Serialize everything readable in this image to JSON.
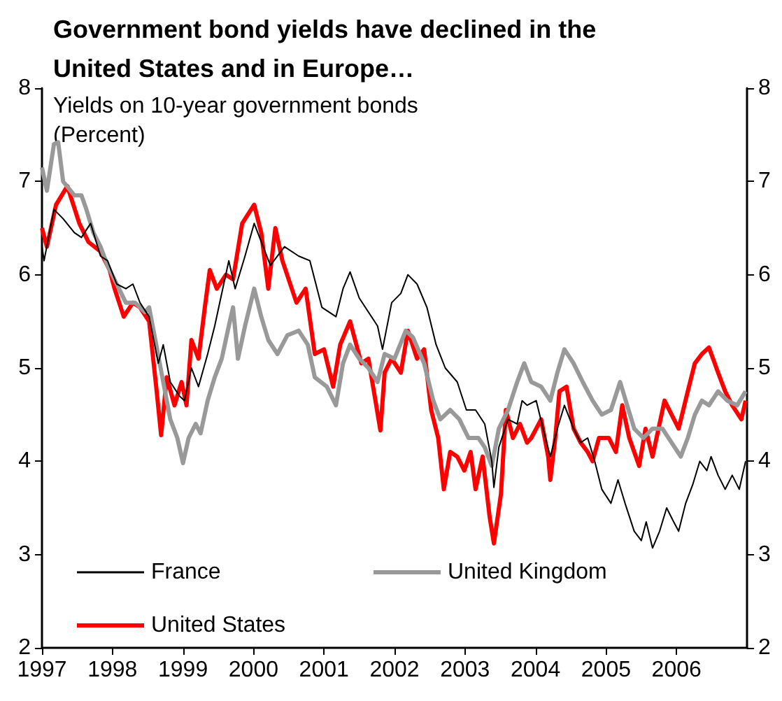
{
  "chart_data": {
    "type": "line",
    "title": "Government bond yields have declined in the United States and in Europe…",
    "annotations": [
      "Yields on 10-year government bonds",
      "(Percent)"
    ],
    "xlim": [
      1997,
      2007
    ],
    "xticks": [
      1997,
      1998,
      1999,
      2000,
      2001,
      2002,
      2003,
      2004,
      2005,
      2006
    ],
    "ylim": [
      2,
      8
    ],
    "yticks": [
      2,
      3,
      4,
      5,
      6,
      7,
      8
    ],
    "y2lim": [
      2,
      8
    ],
    "y2ticks": [
      2,
      3,
      4,
      5,
      6,
      7,
      8
    ],
    "grid": false,
    "legend": "bottom left",
    "marker": "none",
    "line_style": "solid",
    "series": [
      {
        "name": "France",
        "color": "#000000",
        "x": [
          1997.0,
          1997.03,
          1997.17,
          1997.3,
          1997.46,
          1997.56,
          1997.69,
          1997.83,
          1997.93,
          1998.06,
          1998.19,
          1998.29,
          1998.39,
          1998.52,
          1998.65,
          1998.72,
          1998.82,
          1998.95,
          1999.02,
          1999.12,
          1999.22,
          1999.35,
          1999.45,
          1999.55,
          1999.65,
          1999.74,
          1999.88,
          2000.01,
          2000.24,
          2000.44,
          2000.64,
          2000.8,
          2000.97,
          2001.17,
          2001.27,
          2001.37,
          2001.5,
          2001.63,
          2001.76,
          2001.83,
          2001.96,
          2002.09,
          2002.19,
          2002.32,
          2002.46,
          2002.59,
          2002.72,
          2002.89,
          2003.02,
          2003.15,
          2003.28,
          2003.38,
          2003.41,
          2003.48,
          2003.61,
          2003.74,
          2003.81,
          2003.88,
          2004.01,
          2004.14,
          2004.21,
          2004.31,
          2004.41,
          2004.54,
          2004.64,
          2004.74,
          2004.84,
          2004.94,
          2005.07,
          2005.17,
          2005.27,
          2005.4,
          2005.5,
          2005.57,
          2005.66,
          2005.76,
          2005.86,
          2005.96,
          2006.03,
          2006.13,
          2006.23,
          2006.33,
          2006.43,
          2006.49,
          2006.59,
          2006.69,
          2006.79,
          2006.89,
          2006.98
        ],
        "values": [
          6.3,
          6.15,
          6.7,
          6.6,
          6.45,
          6.4,
          6.55,
          6.2,
          6.15,
          5.9,
          5.85,
          5.9,
          5.7,
          5.55,
          5.05,
          5.25,
          4.85,
          4.7,
          4.65,
          5.0,
          4.8,
          5.15,
          5.45,
          5.8,
          6.15,
          5.85,
          6.2,
          6.55,
          6.1,
          6.3,
          6.2,
          6.15,
          5.65,
          5.55,
          5.85,
          6.03,
          5.75,
          5.6,
          5.45,
          5.2,
          5.7,
          5.8,
          6.0,
          5.9,
          5.65,
          5.25,
          5.0,
          4.85,
          4.55,
          4.55,
          4.4,
          4.0,
          3.72,
          4.15,
          4.45,
          4.4,
          4.65,
          4.6,
          4.65,
          4.25,
          4.05,
          4.35,
          4.6,
          4.35,
          4.2,
          4.25,
          4.0,
          3.7,
          3.55,
          3.8,
          3.55,
          3.25,
          3.15,
          3.35,
          3.07,
          3.25,
          3.5,
          3.35,
          3.25,
          3.55,
          3.75,
          4.0,
          3.9,
          4.05,
          3.85,
          3.7,
          3.85,
          3.7,
          4.0
        ]
      },
      {
        "name": "United Kingdom",
        "color": "#999999",
        "x": [
          1997.0,
          1997.07,
          1997.17,
          1997.23,
          1997.3,
          1997.46,
          1997.56,
          1997.63,
          1997.73,
          1997.83,
          1997.93,
          1998.06,
          1998.19,
          1998.32,
          1998.46,
          1998.52,
          1998.62,
          1998.72,
          1998.82,
          1998.92,
          1999.0,
          1999.08,
          1999.18,
          1999.25,
          1999.35,
          1999.45,
          1999.55,
          1999.65,
          1999.71,
          1999.78,
          1999.88,
          2000.01,
          2000.11,
          2000.21,
          2000.34,
          2000.48,
          2000.64,
          2000.77,
          2000.87,
          2001.04,
          2001.17,
          2001.27,
          2001.37,
          2001.5,
          2001.63,
          2001.76,
          2001.86,
          2002.0,
          2002.16,
          2002.26,
          2002.42,
          2002.55,
          2002.65,
          2002.79,
          2002.92,
          2003.05,
          2003.19,
          2003.28,
          2003.38,
          2003.48,
          2003.61,
          2003.74,
          2003.84,
          2003.94,
          2004.08,
          2004.21,
          2004.31,
          2004.41,
          2004.54,
          2004.67,
          2004.81,
          2004.94,
          2005.07,
          2005.2,
          2005.3,
          2005.4,
          2005.53,
          2005.66,
          2005.8,
          2005.93,
          2006.06,
          2006.16,
          2006.26,
          2006.36,
          2006.46,
          2006.59,
          2006.72,
          2006.86,
          2006.98
        ],
        "values": [
          7.15,
          6.9,
          7.4,
          7.42,
          7.0,
          6.85,
          6.85,
          6.7,
          6.45,
          6.3,
          6.1,
          5.9,
          5.7,
          5.7,
          5.6,
          5.65,
          5.25,
          4.85,
          4.45,
          4.25,
          3.98,
          4.25,
          4.4,
          4.3,
          4.65,
          4.9,
          5.1,
          5.45,
          5.65,
          5.1,
          5.45,
          5.85,
          5.55,
          5.3,
          5.15,
          5.35,
          5.4,
          5.25,
          4.9,
          4.8,
          4.6,
          5.05,
          5.25,
          5.1,
          5.0,
          4.85,
          5.15,
          5.1,
          5.4,
          5.33,
          5.05,
          4.65,
          4.45,
          4.55,
          4.45,
          4.25,
          4.25,
          4.15,
          3.95,
          4.35,
          4.55,
          4.85,
          5.05,
          4.85,
          4.8,
          4.65,
          4.95,
          5.2,
          5.05,
          4.85,
          4.65,
          4.5,
          4.55,
          4.85,
          4.6,
          4.35,
          4.25,
          4.35,
          4.35,
          4.2,
          4.05,
          4.25,
          4.5,
          4.65,
          4.6,
          4.75,
          4.65,
          4.6,
          4.75
        ]
      },
      {
        "name": "United States",
        "color": "#ff0000",
        "x": [
          1997.0,
          1997.07,
          1997.2,
          1997.36,
          1997.53,
          1997.66,
          1997.83,
          1997.96,
          1998.03,
          1998.16,
          1998.29,
          1998.39,
          1998.52,
          1998.62,
          1998.69,
          1998.77,
          1998.88,
          1998.98,
          1999.05,
          1999.12,
          1999.22,
          1999.31,
          1999.38,
          1999.48,
          1999.61,
          1999.71,
          1999.84,
          2000.01,
          2000.11,
          2000.21,
          2000.31,
          2000.41,
          2000.61,
          2000.74,
          2000.87,
          2001.0,
          2001.13,
          2001.23,
          2001.37,
          2001.53,
          2001.63,
          2001.73,
          2001.8,
          2001.86,
          2001.96,
          2002.09,
          2002.19,
          2002.32,
          2002.42,
          2002.52,
          2002.62,
          2002.7,
          2002.79,
          2002.89,
          2002.99,
          2003.08,
          2003.15,
          2003.25,
          2003.35,
          2003.41,
          2003.51,
          2003.58,
          2003.68,
          2003.78,
          2003.88,
          2003.94,
          2004.08,
          2004.18,
          2004.21,
          2004.28,
          2004.34,
          2004.44,
          2004.54,
          2004.64,
          2004.74,
          2004.81,
          2004.9,
          2005.04,
          2005.14,
          2005.23,
          2005.33,
          2005.47,
          2005.56,
          2005.66,
          2005.83,
          2005.93,
          2006.03,
          2006.16,
          2006.26,
          2006.36,
          2006.46,
          2006.59,
          2006.69,
          2006.79,
          2006.92,
          2006.98
        ],
        "values": [
          6.5,
          6.3,
          6.75,
          6.95,
          6.55,
          6.35,
          6.25,
          6.05,
          5.85,
          5.55,
          5.7,
          5.65,
          5.5,
          4.8,
          4.28,
          4.9,
          4.6,
          4.85,
          4.6,
          5.3,
          5.1,
          5.65,
          6.05,
          5.85,
          6.0,
          5.95,
          6.55,
          6.75,
          6.45,
          5.85,
          6.5,
          6.15,
          5.7,
          5.85,
          5.15,
          5.2,
          4.8,
          5.25,
          5.5,
          5.05,
          5.1,
          4.65,
          4.33,
          4.95,
          5.1,
          4.95,
          5.4,
          5.1,
          5.2,
          4.55,
          4.25,
          3.7,
          4.1,
          4.05,
          3.9,
          4.1,
          3.7,
          4.05,
          3.4,
          3.12,
          3.65,
          4.55,
          4.25,
          4.4,
          4.2,
          4.25,
          4.45,
          4.05,
          3.8,
          4.25,
          4.75,
          4.8,
          4.35,
          4.2,
          4.1,
          4.0,
          4.25,
          4.25,
          4.1,
          4.6,
          4.25,
          3.95,
          4.35,
          4.05,
          4.65,
          4.5,
          4.35,
          4.75,
          5.05,
          5.15,
          5.22,
          4.95,
          4.75,
          4.6,
          4.45,
          4.65
        ]
      }
    ]
  }
}
